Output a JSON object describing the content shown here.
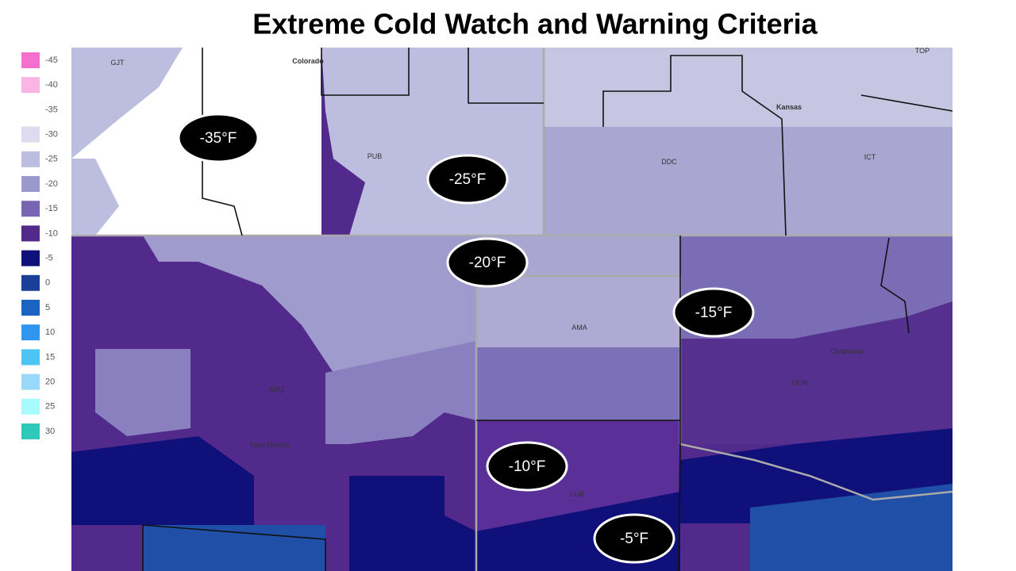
{
  "header": {
    "title": "Extreme Cold Watch and Warning Criteria"
  },
  "legend": [
    {
      "label": "-45",
      "color": "#f46fce"
    },
    {
      "label": "-40",
      "color": "#f9b6e4"
    },
    {
      "label": "-35",
      "color": "#ffffff"
    },
    {
      "label": "-30",
      "color": "#dcdcee"
    },
    {
      "label": "-25",
      "color": "#bdbde0"
    },
    {
      "label": "-20",
      "color": "#9d98cc"
    },
    {
      "label": "-15",
      "color": "#7565b3"
    },
    {
      "label": "-10",
      "color": "#512a8c"
    },
    {
      "label": "-5",
      "color": "#10107a"
    },
    {
      "label": "0",
      "color": "#1a3f98"
    },
    {
      "label": "5",
      "color": "#1b63c2"
    },
    {
      "label": "10",
      "color": "#2e96ef"
    },
    {
      "label": "15",
      "color": "#4ec4f4"
    },
    {
      "label": "20",
      "color": "#98d8f8"
    },
    {
      "label": "25",
      "color": "#a8fbfb"
    },
    {
      "label": "30",
      "color": "#2fc9b9"
    }
  ],
  "map_labels": [
    "GJT",
    "Colorado",
    "TOP",
    "Kansas",
    "PUB",
    "DDC",
    "ICT",
    "AMA",
    "Oklahoma",
    "OUN",
    "ABQ",
    "New Mexico",
    "LUB"
  ],
  "zones": [
    "-35°F",
    "-25°F",
    "-20°F",
    "-15°F",
    "-10°F",
    "-5°F"
  ]
}
